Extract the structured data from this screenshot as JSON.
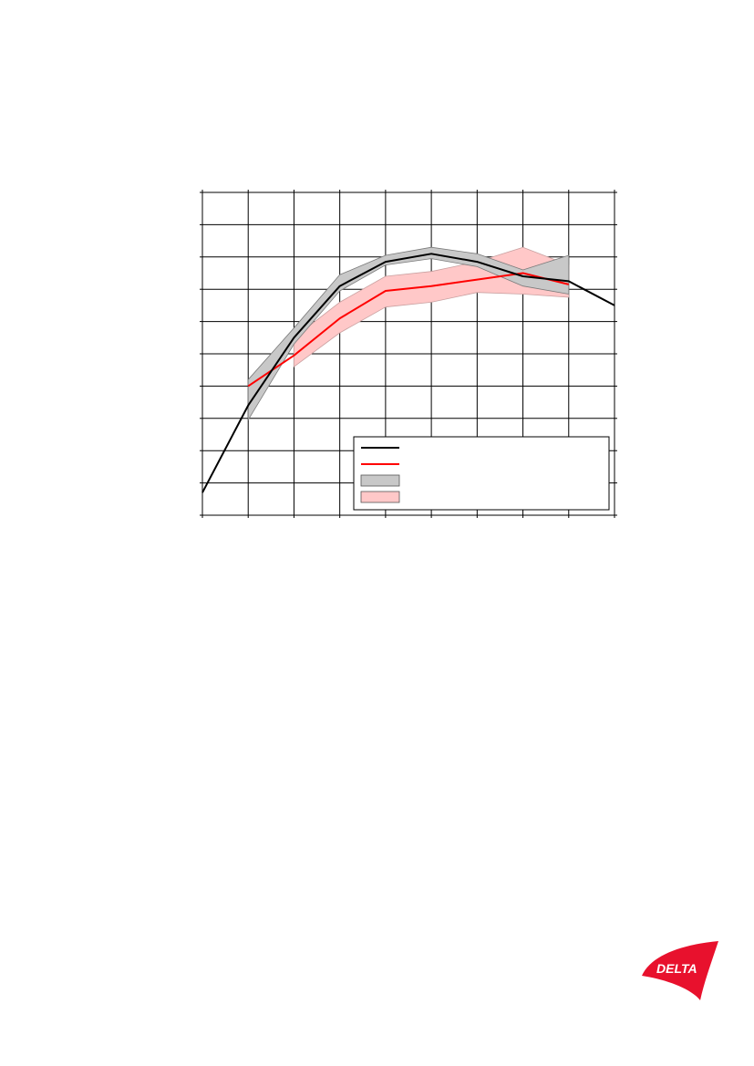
{
  "chart_data": {
    "type": "line",
    "title": "",
    "xlabel": "",
    "ylabel": "",
    "x": [
      0,
      1,
      2,
      3,
      4,
      5,
      6,
      7,
      8,
      9
    ],
    "xlim": [
      0,
      9
    ],
    "ylim": [
      0,
      10
    ],
    "grid": true,
    "legend_position": "bottom-right",
    "series": [
      {
        "kind": "line",
        "color": "#000000",
        "x": [
          0,
          1,
          2,
          3,
          4,
          5,
          6,
          7,
          8,
          9
        ],
        "values": [
          0.7,
          3.4,
          5.5,
          7.1,
          7.85,
          8.1,
          7.85,
          7.4,
          7.25,
          6.5
        ]
      },
      {
        "kind": "line",
        "color": "#ff0000",
        "x": [
          1,
          2,
          3,
          4,
          5,
          6,
          7,
          8
        ],
        "values": [
          4.0,
          4.95,
          6.1,
          6.95,
          7.1,
          7.3,
          7.5,
          7.15
        ]
      },
      {
        "kind": "band",
        "color": "#c8c8c8",
        "x": [
          1,
          2,
          3,
          4,
          5,
          6,
          7,
          8
        ],
        "upper": [
          4.2,
          5.8,
          7.45,
          8.05,
          8.3,
          8.1,
          7.6,
          8.05
        ],
        "lower": [
          2.95,
          5.3,
          6.95,
          7.75,
          7.95,
          7.7,
          7.1,
          6.85
        ]
      },
      {
        "kind": "band",
        "color": "#ffc8c8",
        "x": [
          2,
          3,
          4,
          5,
          6,
          7,
          8
        ],
        "upper": [
          5.5,
          6.6,
          7.4,
          7.55,
          7.85,
          8.3,
          7.75
        ],
        "lower": [
          4.6,
          5.65,
          6.45,
          6.6,
          6.9,
          6.85,
          6.75
        ]
      }
    ],
    "legend": [
      {
        "symbol": "line",
        "color": "#000000",
        "label": ""
      },
      {
        "symbol": "line",
        "color": "#ff0000",
        "label": ""
      },
      {
        "symbol": "box",
        "color": "#c8c8c8",
        "label": ""
      },
      {
        "symbol": "box",
        "color": "#ffc8c8",
        "label": ""
      }
    ]
  },
  "logo": {
    "text": "DELTA",
    "color": "#e8112d",
    "icon": "delta-logo-icon"
  }
}
